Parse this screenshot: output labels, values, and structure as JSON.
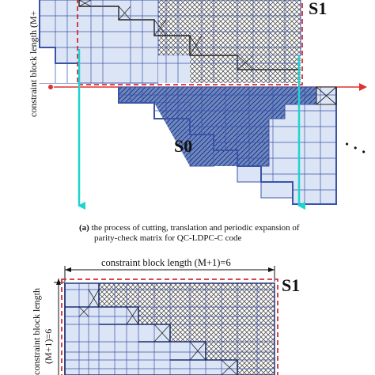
{
  "labels": {
    "s1_top": "S1",
    "s0": "S0",
    "ellipsis": "· · ·",
    "ylabel_top": "constraint block length (M+",
    "caption_a_marker": "(a)",
    "caption_a_line1": " the process of cutting, translation and periodic expansion of",
    "caption_a_line2": "parity-check matrix for QC-LDPC-C code",
    "constraint_label_b": "constraint block length (M+1)=6",
    "s1_bottom": "S1",
    "ylabel_b_line1": "constraint block length",
    "ylabel_b_line2": "(M+1)=6"
  },
  "colors": {
    "cell_fill": "#dce5f5",
    "grid_line": "#3c52a8",
    "dashed_box": "#d42c3a",
    "hatch_fill": "#6b87c4",
    "cyan_arrow": "#1fd3cf",
    "red_arrow": "#e03030",
    "crosshatch": "#555555"
  }
}
